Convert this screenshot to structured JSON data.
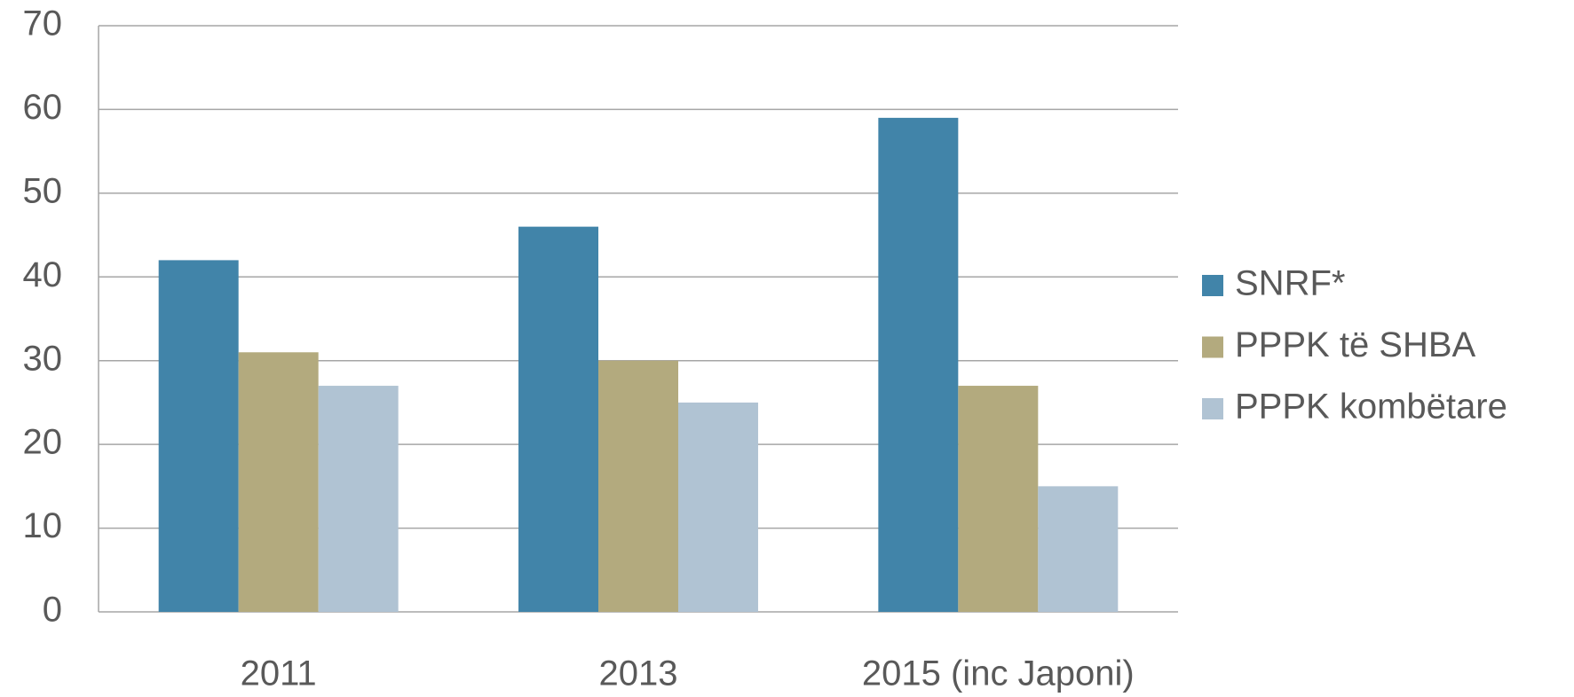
{
  "chart_data": {
    "type": "bar",
    "categories": [
      "2011",
      "2013",
      "2015 (inc Japoni)"
    ],
    "series": [
      {
        "name": "SNRF*",
        "color": "#4184a9",
        "values": [
          42,
          46,
          59
        ]
      },
      {
        "name": "PPPK të SHBA",
        "color": "#b3aa7e",
        "values": [
          31,
          30,
          27
        ]
      },
      {
        "name": "PPPK kombëtare",
        "color": "#b0c3d3",
        "values": [
          27,
          25,
          15
        ]
      }
    ],
    "ylim": [
      0,
      70
    ],
    "yticks": [
      0,
      10,
      20,
      30,
      40,
      50,
      60,
      70
    ],
    "grid": true,
    "legend": "right"
  }
}
